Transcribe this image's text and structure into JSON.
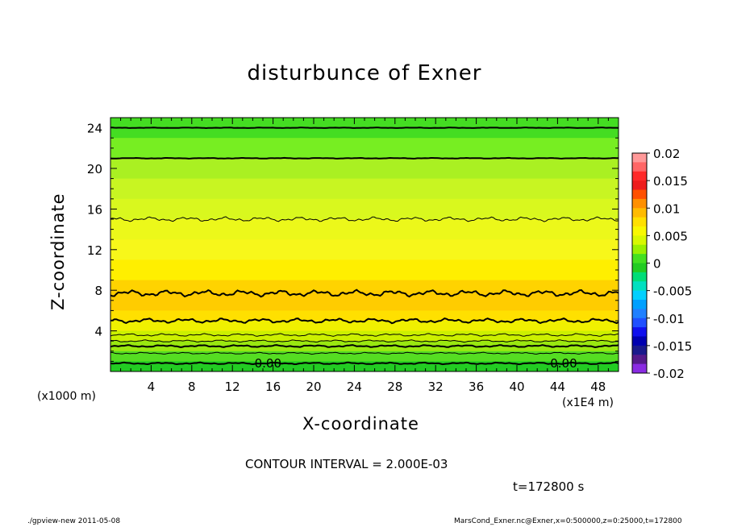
{
  "chart_data": {
    "type": "contour",
    "title": "disturbunce of Exner",
    "xlabel": "X-coordinate",
    "ylabel": "Z-coordinate",
    "x_unit_left": "(x1000 m)",
    "x_unit_right": "(x1E4 m)",
    "xlim": [
      0,
      50
    ],
    "ylim": [
      0,
      25
    ],
    "x_ticks": [
      "4",
      "8",
      "12",
      "16",
      "20",
      "24",
      "28",
      "32",
      "36",
      "40",
      "44",
      "48"
    ],
    "y_ticks": [
      "4",
      "8",
      "12",
      "16",
      "20",
      "24"
    ],
    "contour_labels": [
      "0.00",
      "0.00"
    ],
    "colorbar": {
      "ticks": [
        "0.02",
        "0.015",
        "0.01",
        "0.005",
        "0",
        "-0.005",
        "-0.01",
        "-0.015",
        "-0.02"
      ],
      "range": [
        -0.02,
        0.02
      ],
      "colors": [
        "#ff9999",
        "#ff6666",
        "#ff2a2a",
        "#ee1c1c",
        "#ff5000",
        "#ff9000",
        "#ffbb00",
        "#ffe000",
        "#f8f800",
        "#d8f800",
        "#99f000",
        "#44e020",
        "#22cc22",
        "#00dd77",
        "#00e0c0",
        "#00d0ff",
        "#00a0ff",
        "#2080ff",
        "#2050ff",
        "#1010ee",
        "#0000b0",
        "#1a1a8c",
        "#551a8b",
        "#8a2be2"
      ]
    },
    "horizontal_bands": [
      {
        "z": [
          23,
          25
        ],
        "color": "#44dd22"
      },
      {
        "z": [
          21,
          23
        ],
        "color": "#77ee22"
      },
      {
        "z": [
          19,
          21
        ],
        "color": "#aaf022"
      },
      {
        "z": [
          17,
          19
        ],
        "color": "#c8f522"
      },
      {
        "z": [
          15,
          17
        ],
        "color": "#d9f81e"
      },
      {
        "z": [
          13,
          15
        ],
        "color": "#ecf81a"
      },
      {
        "z": [
          11,
          13
        ],
        "color": "#f7f71a"
      },
      {
        "z": [
          9,
          11
        ],
        "color": "#ffef00"
      },
      {
        "z": [
          8,
          9
        ],
        "color": "#ffd300"
      },
      {
        "z": [
          6,
          8
        ],
        "color": "#ffcc00"
      },
      {
        "z": [
          5,
          6
        ],
        "color": "#ffe000"
      },
      {
        "z": [
          4,
          5
        ],
        "color": "#f0f000"
      },
      {
        "z": [
          3,
          4
        ],
        "color": "#ccf000"
      },
      {
        "z": [
          2,
          3
        ],
        "color": "#99e810"
      },
      {
        "z": [
          1,
          2
        ],
        "color": "#55dd22"
      },
      {
        "z": [
          0,
          1
        ],
        "color": "#22cc22"
      }
    ],
    "contour_lines": [
      {
        "z": 24.0,
        "bold": true,
        "roughness": 0.03
      },
      {
        "z": 21.0,
        "bold": true,
        "roughness": 0.04
      },
      {
        "z": 15.0,
        "bold": false,
        "roughness": 0.25
      },
      {
        "z": 7.7,
        "bold": true,
        "roughness": 0.35
      },
      {
        "z": 5.0,
        "bold": true,
        "roughness": 0.25
      },
      {
        "z": 3.6,
        "bold": false,
        "roughness": 0.15
      },
      {
        "z": 3.0,
        "bold": false,
        "roughness": 0.12
      },
      {
        "z": 2.5,
        "bold": true,
        "roughness": 0.12
      },
      {
        "z": 1.8,
        "bold": false,
        "roughness": 0.1
      },
      {
        "z": 0.8,
        "bold": true,
        "roughness": 0.1
      }
    ]
  },
  "contour_interval_text": "CONTOUR INTERVAL = 2.000E-03",
  "time_text": "t=172800 s",
  "footer_left": "./gpview-new   2011-05-08",
  "footer_right": "MarsCond_Exner.nc@Exner,x=0:500000,z=0:25000,t=172800"
}
